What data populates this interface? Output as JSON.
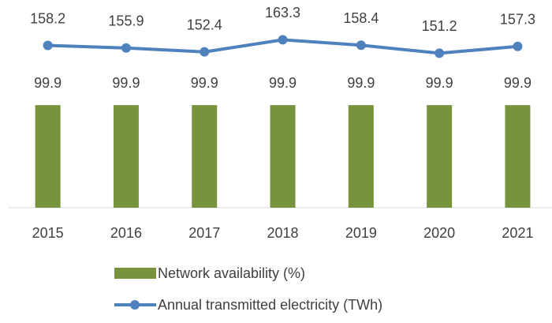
{
  "chart_data": {
    "type": "bar",
    "categories": [
      "2015",
      "2016",
      "2017",
      "2018",
      "2019",
      "2020",
      "2021"
    ],
    "series": [
      {
        "name": "Network availability (%)",
        "color": "#77933c",
        "values": [
          99.9,
          99.9,
          99.9,
          99.9,
          99.9,
          99.9,
          99.9
        ]
      },
      {
        "name": "Annual transmitted electricity (TWh)",
        "type": "line",
        "axis": "y2",
        "color": "#4f81bd",
        "values": [
          158.2,
          155.9,
          152.4,
          163.3,
          158.4,
          151.2,
          157.3
        ]
      }
    ],
    "ylim": [
      0,
      200
    ],
    "y2lim": [
      12,
      197
    ],
    "legend": "bottom"
  }
}
